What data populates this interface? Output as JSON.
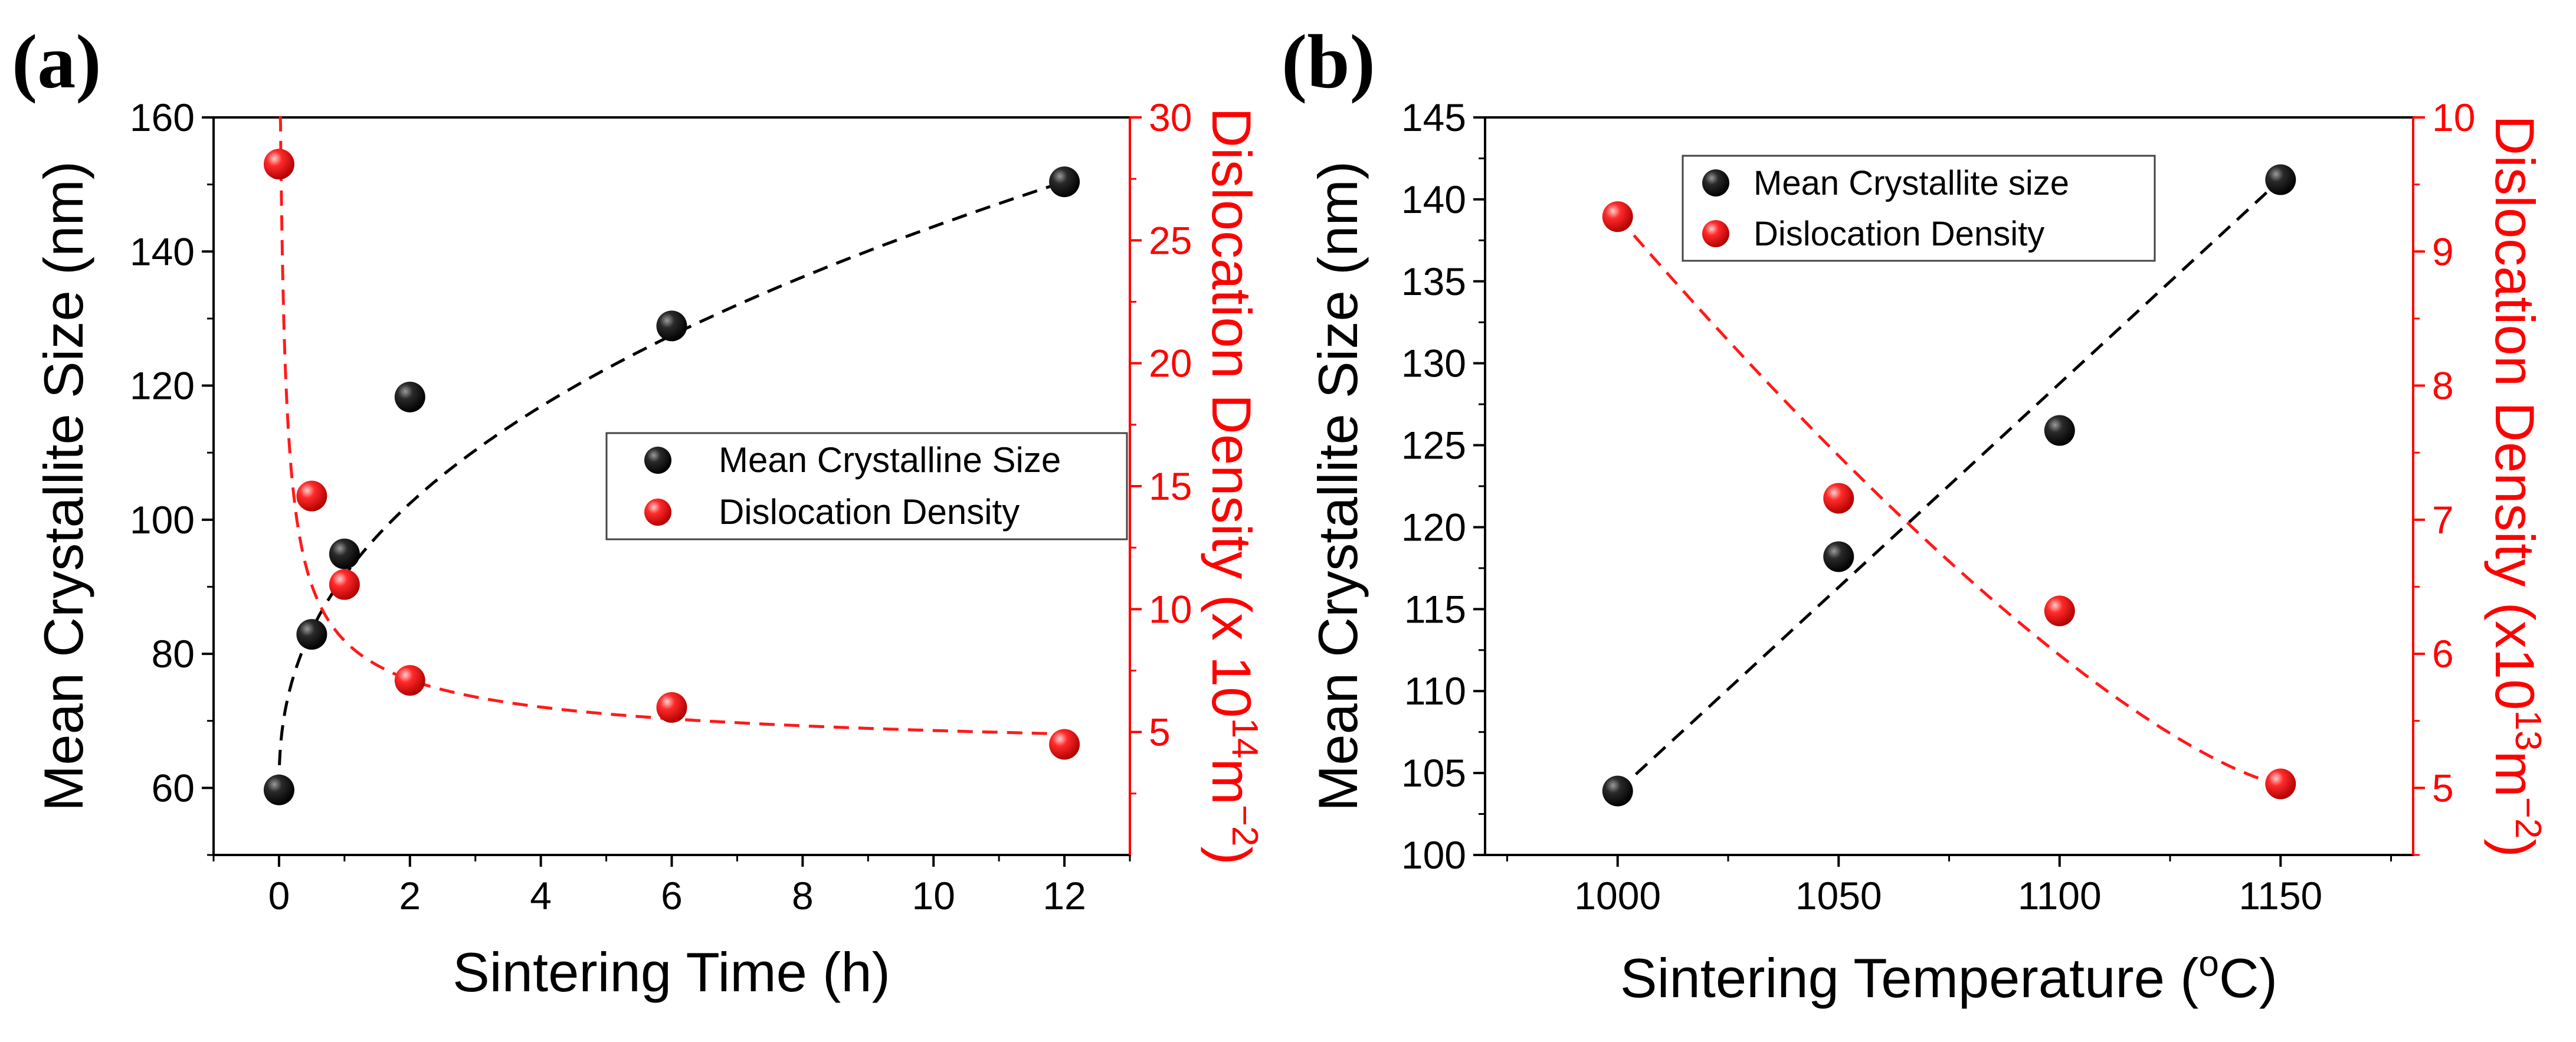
{
  "figure": {
    "panels": [
      "(a)",
      "(b)"
    ]
  },
  "colors": {
    "crystallite": "#000000",
    "dislocation": "#ff1a1a",
    "axis_left": "#000000",
    "axis_right": "#ff0000"
  },
  "chart_data": [
    {
      "type": "scatter",
      "panel": "(a)",
      "xlabel": "Sintering Time (h)",
      "ylabel_left": "Mean Crystallite Size (nm)",
      "ylabel_right_prefix": "Dislocation Density (x 10",
      "ylabel_right_exp1": "14",
      "ylabel_right_mid": "m",
      "ylabel_right_exp2": "−2",
      "ylabel_right_suffix": ")",
      "xlim": [
        -1,
        13
      ],
      "ylim_left": [
        50,
        160
      ],
      "ylim_right": [
        0,
        30
      ],
      "xticks": [
        0,
        2,
        4,
        6,
        8,
        10,
        12
      ],
      "yticks_left": [
        60,
        80,
        100,
        120,
        140,
        160
      ],
      "yticks_right": [
        5,
        10,
        15,
        20,
        25,
        30
      ],
      "legend_position": "center-right",
      "series": [
        {
          "name": "Mean Crystalline Size",
          "axis": "left",
          "x": [
            0,
            0.5,
            1,
            2,
            6,
            12
          ],
          "values": [
            59.7,
            82.9,
            94.9,
            118.3,
            128.9,
            150.4
          ]
        },
        {
          "name": "Dislocation Density",
          "axis": "right",
          "x": [
            0,
            0.5,
            1,
            2,
            6,
            12
          ],
          "values": [
            28.1,
            14.6,
            11.0,
            7.1,
            6.0,
            4.5
          ]
        }
      ]
    },
    {
      "type": "scatter",
      "panel": "(b)",
      "xlabel_prefix": "Sintering Temperature (",
      "xlabel_sup": "o",
      "xlabel_suffix": "C)",
      "ylabel_left": "Mean Crystallite Size (nm)",
      "ylabel_right_prefix": "Dislocation Density (x10",
      "ylabel_right_exp1": "13",
      "ylabel_right_mid": "m",
      "ylabel_right_exp2": "−2",
      "ylabel_right_suffix": ")",
      "xlim": [
        970,
        1180
      ],
      "ylim_left": [
        100,
        145
      ],
      "ylim_right": [
        4.5,
        10
      ],
      "xticks": [
        1000,
        1050,
        1100,
        1150
      ],
      "yticks_left": [
        100,
        105,
        110,
        115,
        120,
        125,
        130,
        135,
        140,
        145
      ],
      "yticks_right": [
        5,
        6,
        7,
        8,
        9,
        10
      ],
      "legend_position": "top-center",
      "series": [
        {
          "name": "Mean Crystallite size",
          "axis": "left",
          "x": [
            1000,
            1050,
            1100,
            1150
          ],
          "values": [
            103.9,
            118.2,
            125.9,
            141.2
          ]
        },
        {
          "name": "Dislocation Density",
          "axis": "right",
          "x": [
            1000,
            1050,
            1100,
            1150
          ],
          "values": [
            9.26,
            7.16,
            6.32,
            5.03
          ]
        }
      ]
    }
  ]
}
